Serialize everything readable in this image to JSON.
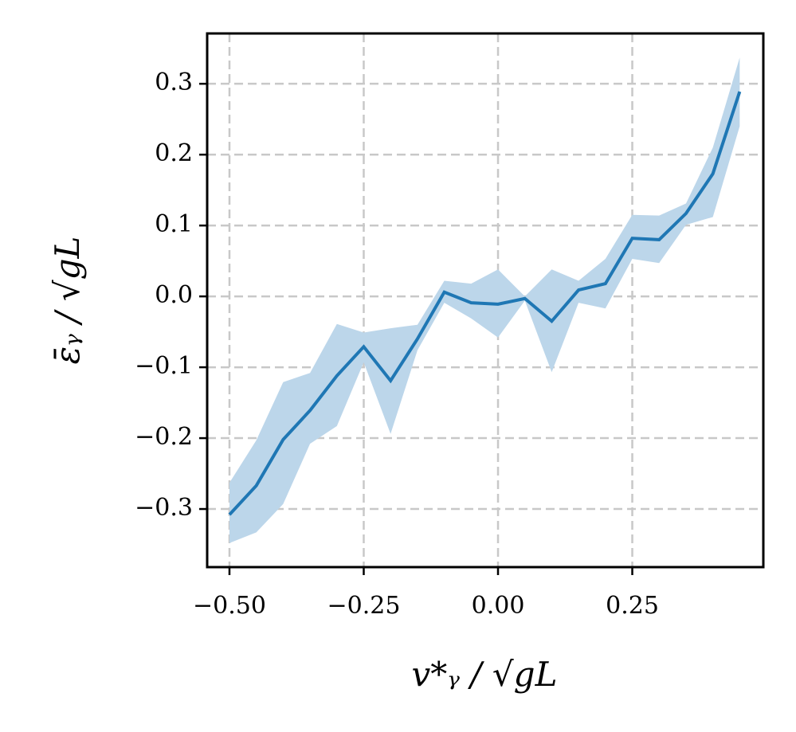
{
  "chart_data": {
    "type": "line",
    "xlabel": "v*ᵧ / √gL",
    "ylabel": "ε̄ᵧ / √gL",
    "x": [
      -0.5,
      -0.45,
      -0.4,
      -0.35,
      -0.3,
      -0.25,
      -0.2,
      -0.15,
      -0.1,
      -0.05,
      0,
      0.05,
      0.1,
      0.15,
      0.2,
      0.25,
      0.3,
      0.35,
      0.4,
      0.45
    ],
    "series": [
      {
        "color": "#1f77b4",
        "band_color": "#bcd6ea",
        "values": [
          -0.308,
          -0.267,
          -0.202,
          -0.161,
          -0.112,
          -0.071,
          -0.119,
          -0.06,
          0.006,
          -0.009,
          -0.011,
          -0.003,
          -0.035,
          0.009,
          0.018,
          0.082,
          0.08,
          0.117,
          0.173,
          0.289
        ],
        "upper": [
          -0.263,
          -0.203,
          -0.121,
          -0.108,
          -0.039,
          -0.051,
          -0.045,
          -0.04,
          0.022,
          0.018,
          0.038,
          0.0,
          0.038,
          0.022,
          0.053,
          0.115,
          0.114,
          0.131,
          0.21,
          0.337
        ],
        "lower": [
          -0.348,
          -0.333,
          -0.293,
          -0.208,
          -0.183,
          -0.093,
          -0.194,
          -0.076,
          -0.009,
          -0.031,
          -0.058,
          -0.006,
          -0.107,
          -0.009,
          -0.017,
          0.053,
          0.047,
          0.101,
          0.112,
          0.24
        ]
      }
    ],
    "xlim": [
      -0.5415,
      0.494
    ],
    "ylim": [
      -0.382,
      0.371
    ],
    "xticks": [
      {
        "value": -0.5,
        "label": "−0.50"
      },
      {
        "value": -0.25,
        "label": "−0.25"
      },
      {
        "value": 0,
        "label": "0.00"
      },
      0.25
    ],
    "yticks": [
      {
        "value": -0.3,
        "label": "−0.3"
      },
      {
        "value": -0.2,
        "label": "−0.2"
      },
      {
        "value": -0.1,
        "label": "−0.1"
      },
      {
        "value": 0,
        "label": "0.0"
      },
      0.1,
      0.2,
      0.3
    ],
    "grid": true
  }
}
